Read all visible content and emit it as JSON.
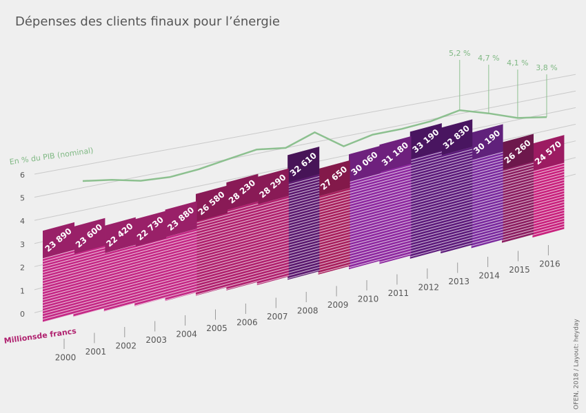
{
  "chart_data": {
    "type": "bar",
    "title": "Dépenses des clients finaux pour l’énergie",
    "categories": [
      "2000",
      "2001",
      "2002",
      "2003",
      "2004",
      "2005",
      "2006",
      "2007",
      "2008",
      "2009",
      "2010",
      "2011",
      "2012",
      "2013",
      "2014",
      "2015",
      "2016"
    ],
    "series": [
      {
        "values": [
          23890,
          23600,
          22420,
          22730,
          23880,
          26580,
          28230,
          28290,
          32610,
          27650,
          30060,
          31180,
          33190,
          32830,
          30190,
          26260,
          24570
        ],
        "value_labels": [
          "23 890",
          "23 600",
          "22 420",
          "22 730",
          "23 880",
          "26 580",
          "28 230",
          "28 290",
          "32 610",
          "27 650",
          "30 060",
          "31 180",
          "33 190",
          "32 830",
          "30 190",
          "26 260",
          "24 570"
        ],
        "colors": [
          "#c42a86",
          "#c42a86",
          "#c42a86",
          "#c42a86",
          "#c42a86",
          "#b0226f",
          "#b0226f",
          "#b0226f",
          "#5c1a70",
          "#a8215f",
          "#8e2aa0",
          "#8e2aa0",
          "#5e1c7c",
          "#5e1c7c",
          "#7b2b9e",
          "#8c1f62",
          "#c8237e"
        ]
      },
      {
        "type": "line",
        "axis": "y2",
        "color": "#8cc08f",
        "values": [
          5.3,
          5.1,
          4.8,
          4.7,
          4.8,
          5.0,
          5.2,
          5.0,
          5.5,
          4.5,
          4.8,
          4.8,
          4.9,
          5.2,
          4.7,
          4.1,
          3.8
        ],
        "value_labels": [
          null,
          null,
          null,
          null,
          null,
          null,
          null,
          null,
          null,
          null,
          null,
          null,
          null,
          "5,2 %",
          "4,7 %",
          "4,1 %",
          "3,8 %"
        ]
      }
    ],
    "ylabel": "Millionsde francs",
    "y2label": "En % du PIB (nominal)",
    "y2lim": [
      0,
      6
    ],
    "y2ticks": [
      0,
      1,
      2,
      3,
      4,
      5,
      6
    ],
    "source": "OFEN, 2018 / Layout: heyday"
  }
}
